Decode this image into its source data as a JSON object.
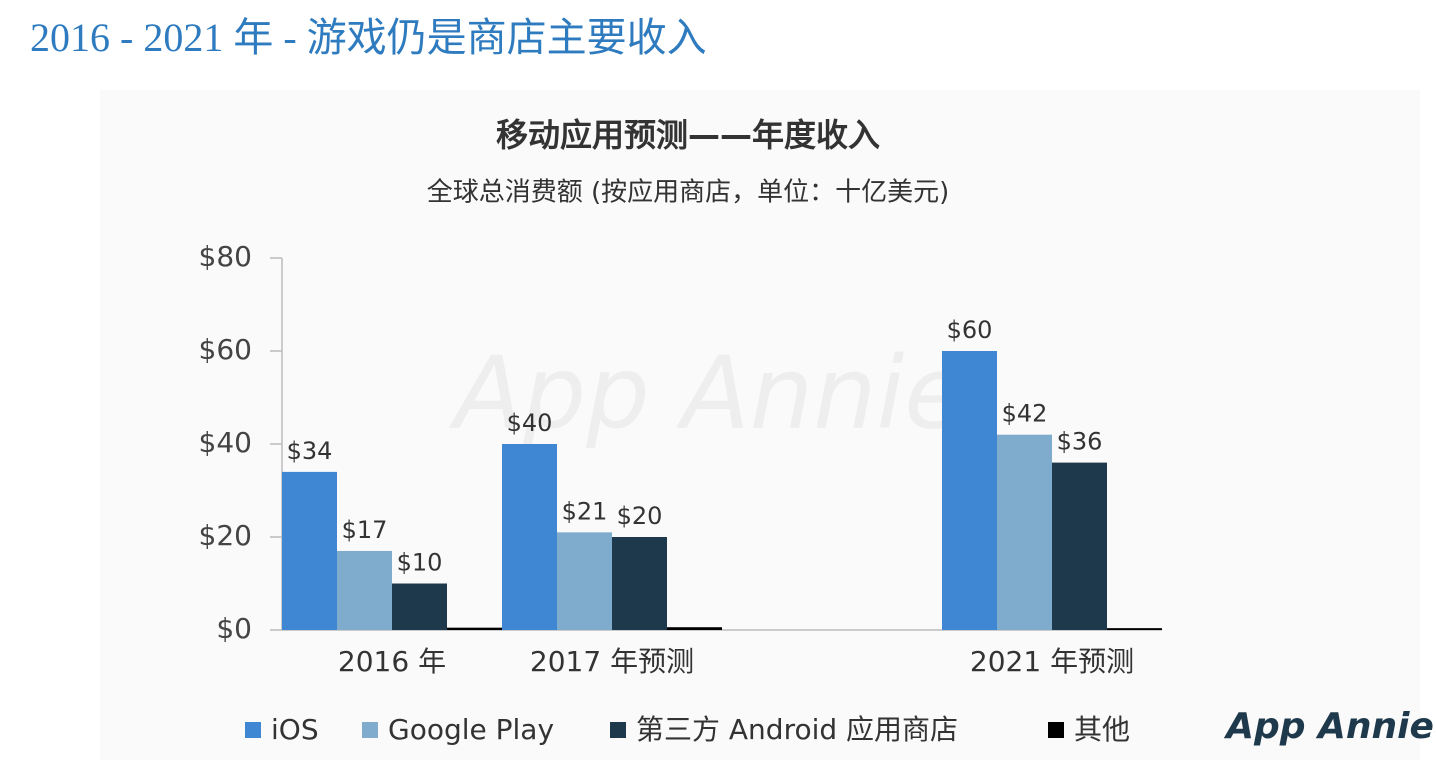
{
  "page_title": "2016 - 2021 年 - 游戏仍是商店主要收入",
  "chart_data": {
    "type": "bar",
    "title": "移动应用预测——年度收入",
    "subtitle": "全球总消费额 (按应用商店，单位：十亿美元)",
    "categories": [
      "2016 年",
      "2017 年预测",
      null,
      "2021 年预测"
    ],
    "series": [
      {
        "name": "iOS",
        "color": "#3f87d3",
        "values": [
          34,
          40,
          null,
          60
        ],
        "value_labels": [
          "$34",
          "$40",
          null,
          "$60"
        ]
      },
      {
        "name": "Google Play",
        "color": "#7fabcc",
        "values": [
          17,
          21,
          null,
          42
        ],
        "value_labels": [
          "$17",
          "$21",
          null,
          "$42"
        ]
      },
      {
        "name": "第三方 Android 应用商店",
        "color": "#1f394c",
        "values": [
          10,
          20,
          null,
          36
        ],
        "value_labels": [
          "$10",
          "$20",
          null,
          "$36"
        ]
      },
      {
        "name": "其他",
        "color": "#000000",
        "values": [
          0.5,
          0.6,
          null,
          0.4
        ]
      }
    ],
    "ylim": [
      0,
      80
    ],
    "yticks": [
      {
        "value": 0,
        "label": "$0"
      },
      {
        "value": 20,
        "label": "$20"
      },
      {
        "value": 40,
        "label": "$40"
      },
      {
        "value": 60,
        "label": "$60"
      },
      {
        "value": 80,
        "label": "$80"
      }
    ],
    "watermark": "App Annie",
    "logo": "App Annie"
  }
}
